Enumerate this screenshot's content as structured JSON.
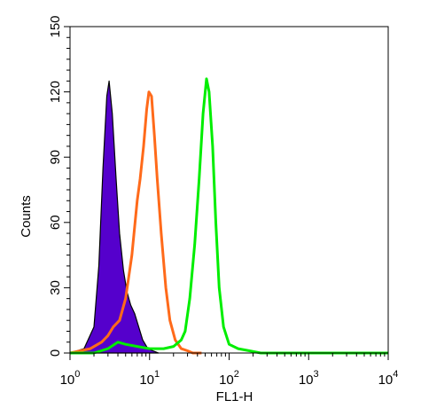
{
  "chart_data": {
    "type": "area",
    "xlabel": "FL1-H",
    "ylabel": "Counts",
    "xscale": "log",
    "xlim": [
      1,
      10000
    ],
    "ylim": [
      0,
      150
    ],
    "y_ticks": [
      0,
      30,
      60,
      90,
      120,
      150
    ],
    "x_tick_labels": [
      {
        "base": "10",
        "exp": "0"
      },
      {
        "base": "10",
        "exp": "1"
      },
      {
        "base": "10",
        "exp": "2"
      },
      {
        "base": "10",
        "exp": "3"
      },
      {
        "base": "10",
        "exp": "4"
      }
    ],
    "grid": false,
    "legend": "none",
    "series": [
      {
        "color": "#5500cc",
        "style": "filled",
        "x": [
          1.0,
          1.5,
          2.0,
          2.3,
          2.6,
          2.9,
          3.1,
          3.4,
          3.8,
          4.2,
          4.7,
          5.2,
          5.8,
          6.5,
          7.3,
          8.2,
          9.5,
          11,
          13
        ],
        "y": [
          0,
          2,
          12,
          40,
          85,
          118,
          125,
          110,
          80,
          55,
          38,
          28,
          22,
          18,
          12,
          6,
          2,
          1,
          0
        ]
      },
      {
        "color": "#ff6a1a",
        "style": "line",
        "x": [
          1.0,
          1.8,
          2.5,
          3.0,
          3.5,
          4.2,
          5.0,
          6.0,
          7.0,
          7.6,
          8.4,
          9.2,
          9.8,
          10.6,
          11.5,
          12.5,
          14,
          16,
          18,
          21,
          25,
          30,
          35,
          45
        ],
        "y": [
          0,
          2,
          5,
          8,
          12,
          15,
          25,
          45,
          70,
          80,
          95,
          112,
          120,
          118,
          100,
          80,
          55,
          30,
          15,
          6,
          2,
          1,
          0,
          0
        ]
      },
      {
        "color": "#00ee00",
        "style": "line",
        "x": [
          1.0,
          2.0,
          3.0,
          4.0,
          5.0,
          7.0,
          10,
          15,
          20,
          25,
          28,
          32,
          37,
          42,
          47,
          52,
          56,
          62,
          68,
          75,
          85,
          100,
          130,
          180,
          250,
          400,
          10000
        ],
        "y": [
          0,
          0,
          2,
          5,
          4,
          3,
          2,
          2,
          3,
          6,
          10,
          25,
          50,
          80,
          110,
          126,
          120,
          95,
          60,
          30,
          12,
          4,
          2,
          1,
          0,
          0,
          0
        ]
      }
    ]
  }
}
